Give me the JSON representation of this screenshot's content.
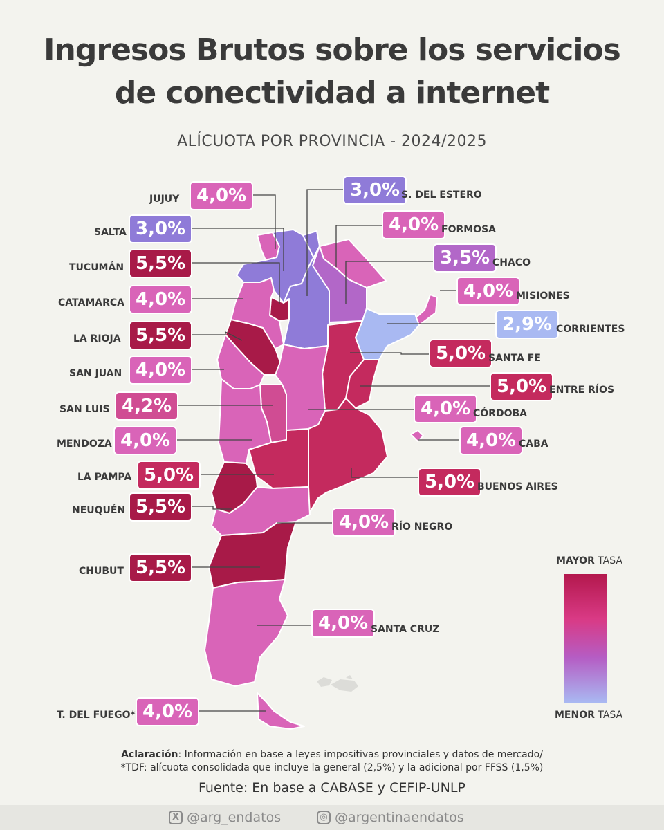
{
  "header": {
    "title_line1": "Ingresos Brutos sobre los servicios",
    "title_line2": "de conectividad a internet",
    "subtitle": "ALÍCUOTA POR PROVINCIA - 2024/2025"
  },
  "provinces": [
    {
      "key": "jujuy",
      "name": "JUJUY",
      "rate": "4,0%",
      "color": "#d964b8"
    },
    {
      "key": "salta",
      "name": "SALTA",
      "rate": "3,0%",
      "color": "#8f7bd8"
    },
    {
      "key": "tucuman",
      "name": "TUCUMÁN",
      "rate": "5,5%",
      "color": "#a81a48"
    },
    {
      "key": "catamarca",
      "name": "CATAMARCA",
      "rate": "4,0%",
      "color": "#d964b8"
    },
    {
      "key": "larioja",
      "name": "LA RIOJA",
      "rate": "5,5%",
      "color": "#a81a48"
    },
    {
      "key": "sanjuan",
      "name": "SAN JUAN",
      "rate": "4,0%",
      "color": "#d964b8"
    },
    {
      "key": "sanluis",
      "name": "SAN LUIS",
      "rate": "4,2%",
      "color": "#d04c93"
    },
    {
      "key": "mendoza",
      "name": "MENDOZA",
      "rate": "4,0%",
      "color": "#d964b8"
    },
    {
      "key": "lapampa",
      "name": "LA PAMPA",
      "rate": "5,0%",
      "color": "#c42a5e"
    },
    {
      "key": "neuquen",
      "name": "NEUQUÉN",
      "rate": "5,5%",
      "color": "#a81a48"
    },
    {
      "key": "chubut",
      "name": "CHUBUT",
      "rate": "5,5%",
      "color": "#a81a48"
    },
    {
      "key": "tdf",
      "name": "T. DEL FUEGO*",
      "rate": "4,0%",
      "color": "#d964b8"
    },
    {
      "key": "sdelestero",
      "name": "S. DEL ESTERO",
      "rate": "3,0%",
      "color": "#8f7bd8"
    },
    {
      "key": "formosa",
      "name": "FORMOSA",
      "rate": "4,0%",
      "color": "#d964b8"
    },
    {
      "key": "chaco",
      "name": "CHACO",
      "rate": "3,5%",
      "color": "#b267c8"
    },
    {
      "key": "misiones",
      "name": "MISIONES",
      "rate": "4,0%",
      "color": "#d964b8"
    },
    {
      "key": "corrientes",
      "name": "CORRIENTES",
      "rate": "2,9%",
      "color": "#a9b9f2"
    },
    {
      "key": "santafe",
      "name": "SANTA FE",
      "rate": "5,0%",
      "color": "#c42a5e"
    },
    {
      "key": "entrerios",
      "name": "ENTRE RÍOS",
      "rate": "5,0%",
      "color": "#c42a5e"
    },
    {
      "key": "cordoba",
      "name": "CÓRDOBA",
      "rate": "4,0%",
      "color": "#d964b8"
    },
    {
      "key": "caba",
      "name": "CABA",
      "rate": "4,0%",
      "color": "#d964b8"
    },
    {
      "key": "buenosaires",
      "name": "BUENOS AIRES",
      "rate": "5,0%",
      "color": "#c42a5e"
    },
    {
      "key": "rionegro",
      "name": "RÍO NEGRO",
      "rate": "4,0%",
      "color": "#d964b8"
    },
    {
      "key": "santacruz",
      "name": "SANTA CRUZ",
      "rate": "4,0%",
      "color": "#d964b8"
    }
  ],
  "legend": {
    "top_bold": "MAYOR",
    "top_rest": "TASA",
    "bottom_bold": "MENOR",
    "bottom_rest": "TASA",
    "high_color": "#b3184d",
    "low_color": "#a9b9f2"
  },
  "notes": {
    "line1_bold": "Aclaración",
    "line1_rest": ": Información en base a leyes impositivas provinciales y datos de mercado/",
    "line2": "*TDF: alícuota consolidada que incluye la general  (2,5%) y la adicional por FFSS (1,5%)",
    "source": "Fuente: En base a CABASE y CEFIP-UNLP"
  },
  "footer": {
    "twitter_icon": "x-icon",
    "twitter": "@arg_endatos",
    "instagram_icon": "instagram-icon",
    "instagram": "@argentinaendatos"
  }
}
